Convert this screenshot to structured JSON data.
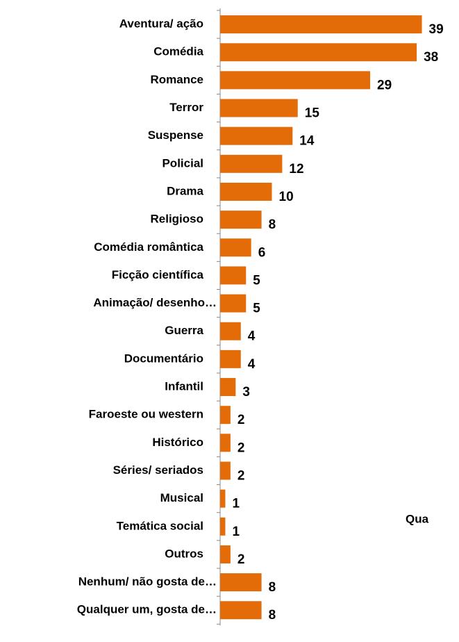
{
  "chart_data": {
    "type": "bar",
    "orientation": "horizontal",
    "categories": [
      "Aventura/ ação",
      "Comédia",
      "Romance",
      "Terror",
      "Suspense",
      "Policial",
      "Drama",
      "Religioso",
      "Comédia romântica",
      "Ficção científica",
      "Animação/ desenho…",
      "Guerra",
      "Documentário",
      "Infantil",
      "Faroeste ou western",
      "Histórico",
      "Séries/ seriados",
      "Musical",
      "Temática social",
      "Outros",
      "Nenhum/ não gosta de…",
      "Qualquer um, gosta de…"
    ],
    "values": [
      39,
      38,
      29,
      15,
      14,
      12,
      10,
      8,
      6,
      5,
      5,
      4,
      4,
      3,
      2,
      2,
      2,
      1,
      1,
      2,
      8,
      8
    ],
    "color": "#e36c09",
    "xlim": [
      0,
      40
    ],
    "annotation": "Qua"
  }
}
